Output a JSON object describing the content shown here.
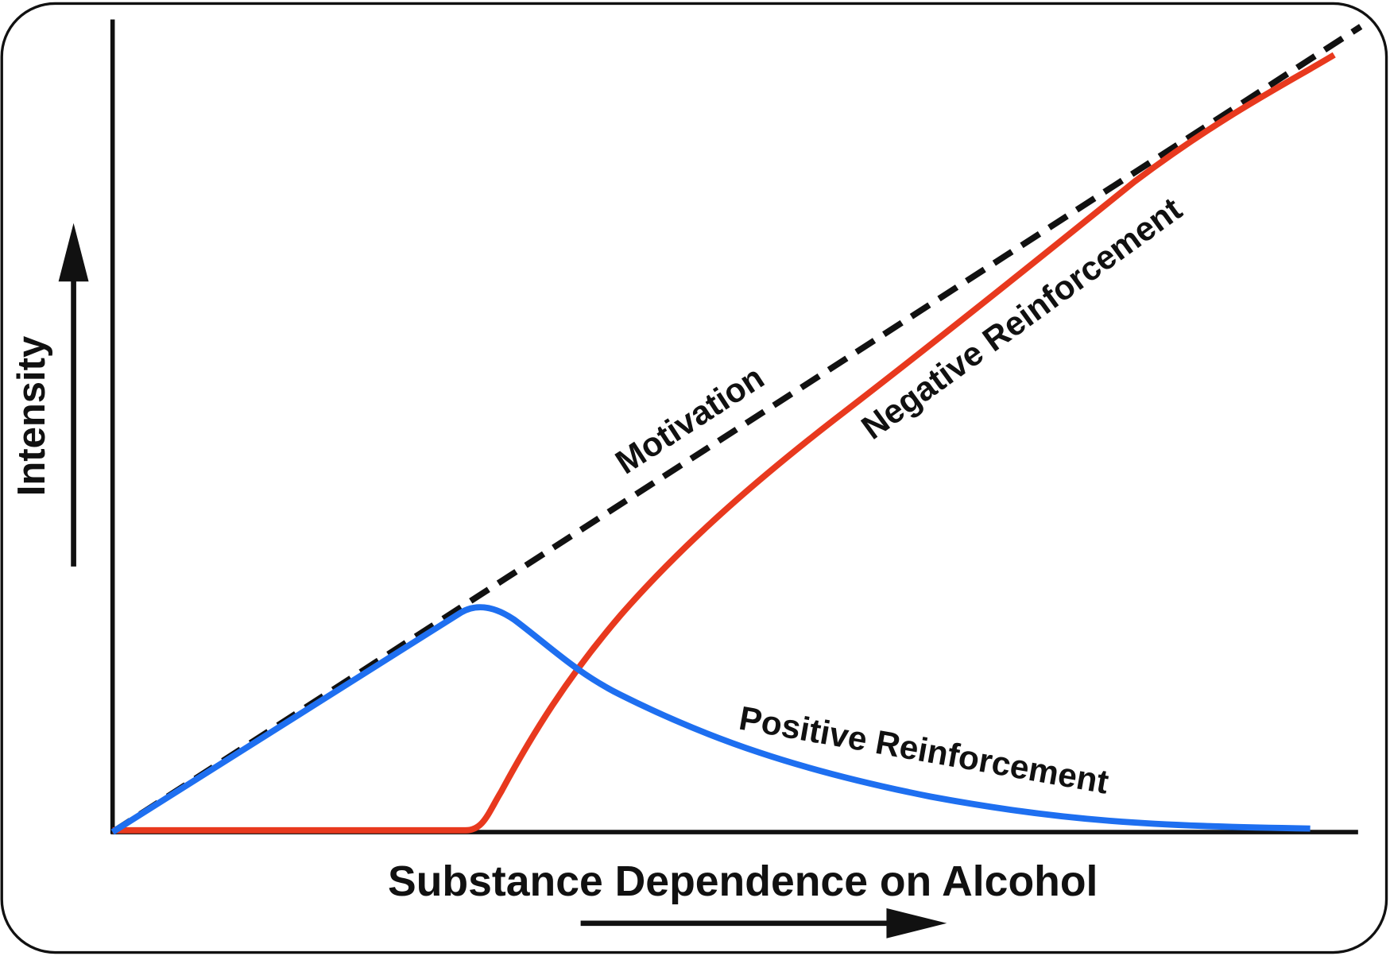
{
  "axes": {
    "y_label": "Intensity",
    "x_label": "Substance Dependence on Alcohol"
  },
  "curves": [
    {
      "label": "Motivation"
    },
    {
      "label": "Negative Reinforcement"
    },
    {
      "label": "Positive Reinforcement"
    }
  ]
}
